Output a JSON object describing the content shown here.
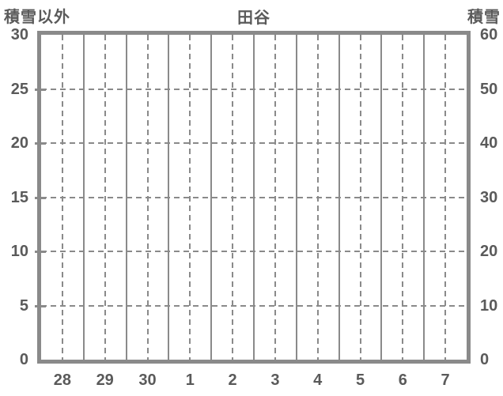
{
  "colors": {
    "grid_line": "#8a8a8a",
    "border": "#8a8a8a",
    "text": "#5a5a5a",
    "background": "#ffffff"
  },
  "header": {
    "left_axis_title": "積雪以外",
    "chart_title": "田谷",
    "right_axis_title": "積雪"
  },
  "chart_data": {
    "type": "line",
    "title": "田谷",
    "series": [],
    "left_axis": {
      "title": "積雪以外",
      "min": 0,
      "max": 30,
      "tick_step": 5,
      "ticks": [
        0,
        5,
        10,
        15,
        20,
        25,
        30
      ]
    },
    "right_axis": {
      "title": "積雪",
      "min": 0,
      "max": 60,
      "tick_step": 10,
      "ticks": [
        0,
        10,
        20,
        30,
        40,
        50,
        60
      ]
    },
    "x_axis": {
      "tick_labels": [
        "28",
        "29",
        "30",
        "1",
        "2",
        "3",
        "4",
        "5",
        "6",
        "7"
      ]
    },
    "grid": {
      "vertical_solid_at_day_boundaries": true,
      "vertical_dashed_at_day_midpoints": true,
      "horizontal_dashed_at_left_ticks": true,
      "legend": "none"
    }
  }
}
